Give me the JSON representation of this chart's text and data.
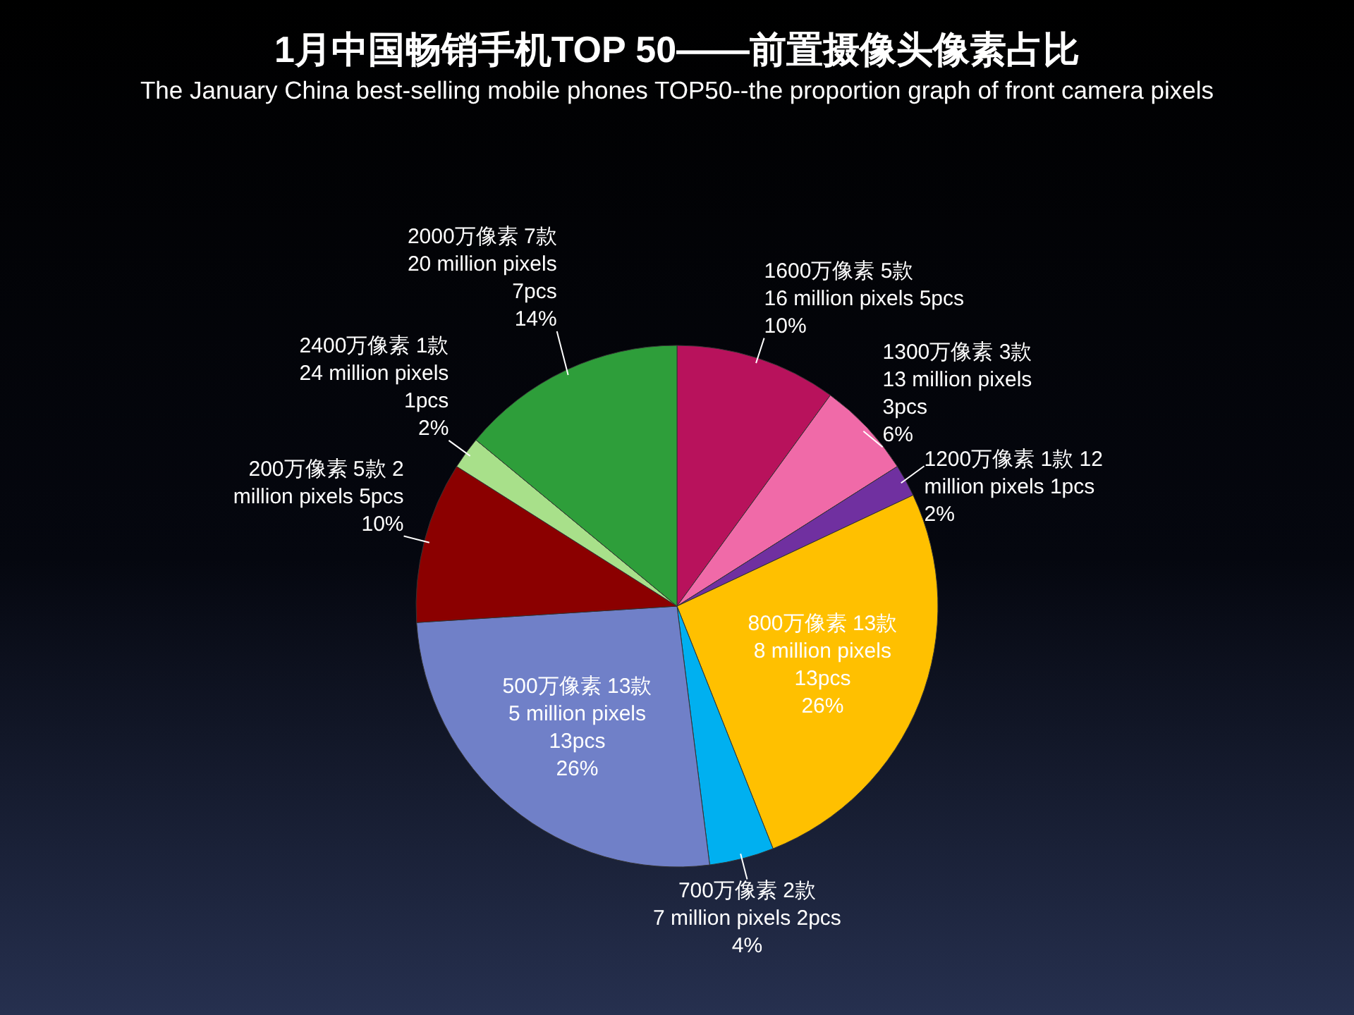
{
  "chart_data": {
    "type": "pie",
    "title": "1月中国畅销手机TOP 50——前置摄像头像素占比",
    "subtitle": "The January China best-selling mobile phones TOP50--the proportion graph of front camera pixels",
    "categories": [
      "1600万像素 5款\n16 million pixels 5pcs",
      "1300万像素 3款\n13 million pixels\n3pcs",
      "1200万像素 1款 12\nmillion pixels 1pcs",
      "800万像素 13款\n8 million pixels\n13pcs",
      "700万像素 2款\n7 million pixels 2pcs",
      "500万像素 13款\n5 million pixels\n13pcs",
      "200万像素 5款 2\nmillion pixels 5pcs",
      "2400万像素 1款\n24 million pixels\n1pcs",
      "2000万像素 7款\n20 million pixels\n7pcs"
    ],
    "values": [
      10,
      6,
      2,
      26,
      4,
      26,
      10,
      2,
      14
    ],
    "value_labels": [
      "10%",
      "6%",
      "2%",
      "26%",
      "4%",
      "26%",
      "10%",
      "2%",
      "14%"
    ],
    "colors": [
      "#b8125c",
      "#f06aa8",
      "#7030a0",
      "#ffc000",
      "#00b0f0",
      "#7080c8",
      "#8b0000",
      "#a8e08a",
      "#2e9e3a"
    ]
  }
}
